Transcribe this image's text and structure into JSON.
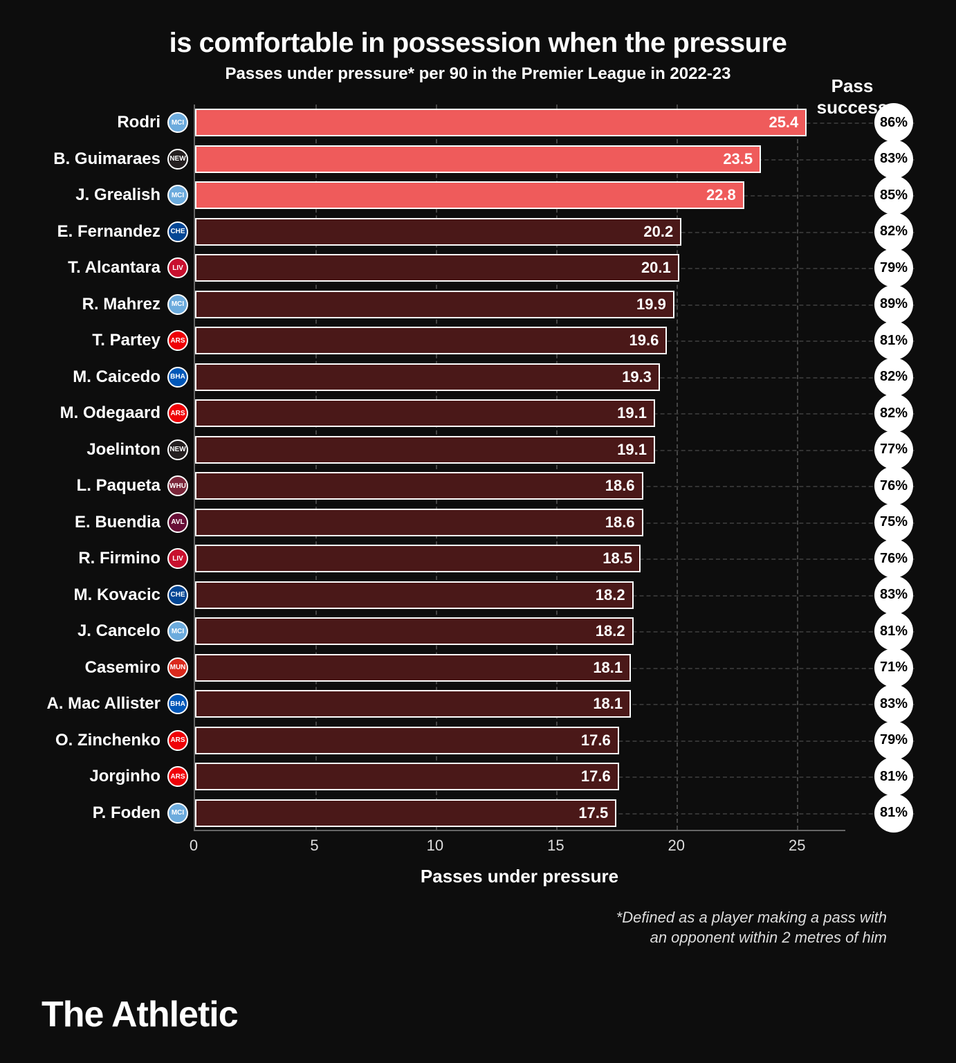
{
  "title": "is comfortable in possession when the pressure",
  "subtitle": "Passes under pressure* per 90 in the Premier League in 2022-23",
  "success_header": "Pass success",
  "x_label": "Passes under pressure",
  "footnote_line1": "*Defined as a player making a pass with",
  "footnote_line2": "an opponent within 2 metres of him",
  "brand": "The Athletic",
  "chart": {
    "type": "bar",
    "x_max": 27,
    "x_ticks": [
      0,
      5,
      10,
      15,
      20,
      25
    ],
    "bar_border": "#ffffff",
    "grid_color": "#444444",
    "row_grid_color": "#333333",
    "bg": "#0d0d0d",
    "highlight_color": "#ef5b5b",
    "normal_color": "#4a1818",
    "players": [
      {
        "name": "Rodri",
        "team": "MCI",
        "badge_bg": "#6cabdd",
        "value": 25.4,
        "success": "86%",
        "highlight": true
      },
      {
        "name": "B. Guimaraes",
        "team": "NEW",
        "badge_bg": "#241f20",
        "value": 23.5,
        "success": "83%",
        "highlight": true
      },
      {
        "name": "J. Grealish",
        "team": "MCI",
        "badge_bg": "#6cabdd",
        "value": 22.8,
        "success": "85%",
        "highlight": true
      },
      {
        "name": "E. Fernandez",
        "team": "CHE",
        "badge_bg": "#034694",
        "value": 20.2,
        "success": "82%",
        "highlight": false
      },
      {
        "name": "T. Alcantara",
        "team": "LIV",
        "badge_bg": "#c8102e",
        "value": 20.1,
        "success": "79%",
        "highlight": false
      },
      {
        "name": "R. Mahrez",
        "team": "MCI",
        "badge_bg": "#6cabdd",
        "value": 19.9,
        "success": "89%",
        "highlight": false
      },
      {
        "name": "T. Partey",
        "team": "ARS",
        "badge_bg": "#ef0107",
        "value": 19.6,
        "success": "81%",
        "highlight": false
      },
      {
        "name": "M. Caicedo",
        "team": "BHA",
        "badge_bg": "#0057b8",
        "value": 19.3,
        "success": "82%",
        "highlight": false
      },
      {
        "name": "M. Odegaard",
        "team": "ARS",
        "badge_bg": "#ef0107",
        "value": 19.1,
        "success": "82%",
        "highlight": false
      },
      {
        "name": "Joelinton",
        "team": "NEW",
        "badge_bg": "#241f20",
        "value": 19.1,
        "success": "77%",
        "highlight": false
      },
      {
        "name": "L. Paqueta",
        "team": "WHU",
        "badge_bg": "#7a263a",
        "value": 18.6,
        "success": "76%",
        "highlight": false
      },
      {
        "name": "E. Buendia",
        "team": "AVL",
        "badge_bg": "#670e36",
        "value": 18.6,
        "success": "75%",
        "highlight": false
      },
      {
        "name": "R. Firmino",
        "team": "LIV",
        "badge_bg": "#c8102e",
        "value": 18.5,
        "success": "76%",
        "highlight": false
      },
      {
        "name": "M. Kovacic",
        "team": "CHE",
        "badge_bg": "#034694",
        "value": 18.2,
        "success": "83%",
        "highlight": false
      },
      {
        "name": "J. Cancelo",
        "team": "MCI",
        "badge_bg": "#6cabdd",
        "value": 18.2,
        "success": "81%",
        "highlight": false
      },
      {
        "name": "Casemiro",
        "team": "MUN",
        "badge_bg": "#da291c",
        "value": 18.1,
        "success": "71%",
        "highlight": false
      },
      {
        "name": "A. Mac Allister",
        "team": "BHA",
        "badge_bg": "#0057b8",
        "value": 18.1,
        "success": "83%",
        "highlight": false
      },
      {
        "name": "O. Zinchenko",
        "team": "ARS",
        "badge_bg": "#ef0107",
        "value": 17.6,
        "success": "79%",
        "highlight": false
      },
      {
        "name": "Jorginho",
        "team": "ARS",
        "badge_bg": "#ef0107",
        "value": 17.6,
        "success": "81%",
        "highlight": false
      },
      {
        "name": "P. Foden",
        "team": "MCI",
        "badge_bg": "#6cabdd",
        "value": 17.5,
        "success": "81%",
        "highlight": false
      }
    ]
  }
}
